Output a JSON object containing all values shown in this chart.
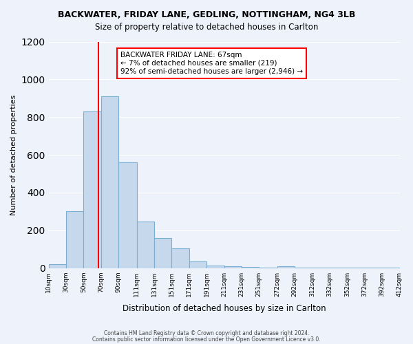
{
  "title": "BACKWATER, FRIDAY LANE, GEDLING, NOTTINGHAM, NG4 3LB",
  "subtitle": "Size of property relative to detached houses in Carlton",
  "xlabel": "Distribution of detached houses by size in Carlton",
  "ylabel": "Number of detached properties",
  "bar_color": "#c6d9ec",
  "bar_edge_color": "#7aafd4",
  "bins": [
    10,
    30,
    50,
    70,
    90,
    111,
    131,
    151,
    171,
    191,
    211,
    231,
    251,
    272,
    292,
    312,
    332,
    352,
    372,
    392,
    412
  ],
  "counts": [
    20,
    300,
    830,
    910,
    560,
    245,
    160,
    105,
    35,
    15,
    10,
    5,
    3,
    10,
    3,
    2,
    2,
    2,
    2,
    2
  ],
  "tick_labels": [
    "10sqm",
    "30sqm",
    "50sqm",
    "70sqm",
    "90sqm",
    "111sqm",
    "131sqm",
    "151sqm",
    "171sqm",
    "191sqm",
    "211sqm",
    "231sqm",
    "251sqm",
    "272sqm",
    "292sqm",
    "312sqm",
    "332sqm",
    "352sqm",
    "372sqm",
    "392sqm",
    "412sqm"
  ],
  "property_line_x": 67,
  "property_line_color": "red",
  "annotation_title": "BACKWATER FRIDAY LANE: 67sqm",
  "annotation_line1": "← 7% of detached houses are smaller (219)",
  "annotation_line2": "92% of semi-detached houses are larger (2,946) →",
  "annotation_box_color": "#ffffff",
  "annotation_box_edge": "red",
  "ylim": [
    0,
    1200
  ],
  "yticks": [
    0,
    200,
    400,
    600,
    800,
    1000,
    1200
  ],
  "footer1": "Contains HM Land Registry data © Crown copyright and database right 2024.",
  "footer2": "Contains public sector information licensed under the Open Government Licence v3.0.",
  "background_color": "#eef2fb"
}
